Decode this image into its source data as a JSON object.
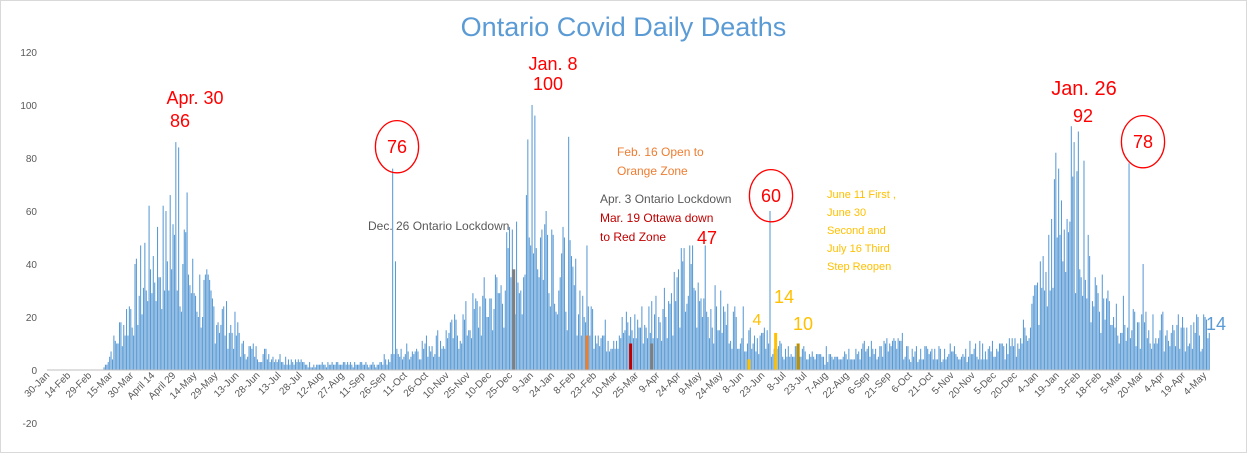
{
  "chart_data": {
    "type": "bar",
    "title": "Ontario Covid Daily Deaths",
    "xlabel": "",
    "ylabel": "",
    "ylim": [
      -20,
      120
    ],
    "yticks": [
      120,
      100,
      80,
      60,
      40,
      20,
      0,
      -20
    ],
    "grid": false,
    "bar_color": "#5b9bd5",
    "x_start": "2020-01-30",
    "x_end": "2022-05-04",
    "x_tick_labels": [
      "30-Jan",
      "14-Feb",
      "29-Feb",
      "15-Mar",
      "30-Mar",
      "April 14",
      "April 29",
      "14-May",
      "29-May",
      "13-Jun",
      "28-Jun",
      "13-Jul",
      "28-Jul",
      "12-Aug",
      "27-Aug",
      "11-Sep",
      "26-Sep",
      "11-Oct",
      "26-Oct",
      "10-Nov",
      "25-Nov",
      "10-Dec",
      "25-Dec",
      "9-Jan",
      "24-Jan",
      "8-Feb",
      "23-Feb",
      "10-Mar",
      "25-Mar",
      "9-Apr",
      "24-Apr",
      "9-May",
      "24-May",
      "8-Jun",
      "23-Jun",
      "8-Jul",
      "23-Jul",
      "7-Aug",
      "22-Aug",
      "6-Sep",
      "21-Sep",
      "6-Oct",
      "21-Oct",
      "5-Nov",
      "20-Nov",
      "5-Dec",
      "20-Dec",
      "4-Jan",
      "19-Jan",
      "3-Feb",
      "18-Feb",
      "5-Mar",
      "20-Mar",
      "4-Apr",
      "19-Apr",
      "4-May"
    ],
    "series_waves": [
      {
        "start": "2020-03-10",
        "end": "2020-04-08",
        "level_from": 1,
        "level_to": 35
      },
      {
        "start": "2020-04-08",
        "end": "2020-05-10",
        "level_from": 40,
        "level_to": 45
      },
      {
        "start": "2020-05-10",
        "end": "2020-06-15",
        "level_from": 32,
        "level_to": 12
      },
      {
        "start": "2020-06-15",
        "end": "2020-08-05",
        "level_from": 8,
        "level_to": 2
      },
      {
        "start": "2020-08-05",
        "end": "2020-09-20",
        "level_from": 2,
        "level_to": 2
      },
      {
        "start": "2020-09-20",
        "end": "2020-11-10",
        "level_from": 3,
        "level_to": 12
      },
      {
        "start": "2020-11-10",
        "end": "2020-12-20",
        "level_from": 12,
        "level_to": 30
      },
      {
        "start": "2020-12-20",
        "end": "2021-01-25",
        "level_from": 35,
        "level_to": 55
      },
      {
        "start": "2021-01-25",
        "end": "2021-02-25",
        "level_from": 40,
        "level_to": 15
      },
      {
        "start": "2021-02-25",
        "end": "2021-04-01",
        "level_from": 12,
        "level_to": 18
      },
      {
        "start": "2021-04-01",
        "end": "2021-05-05",
        "level_from": 20,
        "level_to": 35
      },
      {
        "start": "2021-05-05",
        "end": "2021-06-25",
        "level_from": 25,
        "level_to": 10
      },
      {
        "start": "2021-06-25",
        "end": "2021-08-05",
        "level_from": 8,
        "level_to": 4
      },
      {
        "start": "2021-08-05",
        "end": "2021-10-01",
        "level_from": 6,
        "level_to": 9
      },
      {
        "start": "2021-10-01",
        "end": "2021-12-20",
        "level_from": 6,
        "level_to": 8
      },
      {
        "start": "2021-12-20",
        "end": "2022-01-12",
        "level_from": 10,
        "level_to": 40
      },
      {
        "start": "2022-01-12",
        "end": "2022-02-05",
        "level_from": 55,
        "level_to": 60
      },
      {
        "start": "2022-02-05",
        "end": "2022-03-10",
        "level_from": 35,
        "level_to": 15
      },
      {
        "start": "2022-03-10",
        "end": "2022-05-04",
        "level_from": 15,
        "level_to": 14
      }
    ],
    "spikes": [
      {
        "date": "2020-04-30",
        "value": 86
      },
      {
        "date": "2020-05-02",
        "value": 84
      },
      {
        "date": "2020-04-26",
        "value": 66
      },
      {
        "date": "2020-10-01",
        "value": 76
      },
      {
        "date": "2020-10-03",
        "value": 41
      },
      {
        "date": "2021-01-08",
        "value": 100
      },
      {
        "date": "2021-01-10",
        "value": 96
      },
      {
        "date": "2021-01-05",
        "value": 87
      },
      {
        "date": "2021-02-03",
        "value": 88
      },
      {
        "date": "2021-02-16",
        "value": 47
      },
      {
        "date": "2021-05-11",
        "value": 47
      },
      {
        "date": "2021-06-26",
        "value": 60
      },
      {
        "date": "2022-01-26",
        "value": 92
      },
      {
        "date": "2022-01-30",
        "value": 75
      },
      {
        "date": "2022-03-08",
        "value": 78
      },
      {
        "date": "2022-03-18",
        "value": 40
      },
      {
        "date": "2022-05-04",
        "value": 14
      }
    ],
    "highlight_bars": [
      {
        "date": "2020-12-26",
        "value": 38,
        "color": "#7f7f7f"
      },
      {
        "date": "2021-02-16",
        "value": 13,
        "color": "#ed7d31"
      },
      {
        "date": "2021-03-19",
        "value": 10,
        "color": "#c00000"
      },
      {
        "date": "2021-04-03",
        "value": 10,
        "color": "#7f7f7f"
      },
      {
        "date": "2021-06-11",
        "value": 4,
        "color": "#ffc000"
      },
      {
        "date": "2021-06-30",
        "value": 14,
        "color": "#ffc000"
      },
      {
        "date": "2021-07-16",
        "value": 10,
        "color": "#bf9000"
      }
    ],
    "annotations": [
      {
        "text": "Apr. 30",
        "color": "#ff0000",
        "size": 18
      },
      {
        "text": "86",
        "color": "#ff0000",
        "size": 18
      },
      {
        "text": "76",
        "color": "#ff0000",
        "size": 18,
        "circled": true
      },
      {
        "text": "Dec. 26 Ontario Lockdown",
        "color": "#595959",
        "size": 12
      },
      {
        "text": "Jan. 8",
        "color": "#ff0000",
        "size": 18
      },
      {
        "text": "100",
        "color": "#ff0000",
        "size": 18
      },
      {
        "text": "Feb. 16 Open to",
        "color": "#ed7d31",
        "size": 12
      },
      {
        "text": "Orange Zone",
        "color": "#ed7d31",
        "size": 12
      },
      {
        "text": "Apr. 3 Ontario Lockdown",
        "color": "#595959",
        "size": 12
      },
      {
        "text": "Mar. 19 Ottawa down",
        "color": "#c00000",
        "size": 12
      },
      {
        "text": "to Red Zone",
        "color": "#c00000",
        "size": 12
      },
      {
        "text": "47",
        "color": "#ff0000",
        "size": 18
      },
      {
        "text": "60",
        "color": "#ff0000",
        "size": 18,
        "circled": true
      },
      {
        "text": "June 11 First ,",
        "color": "#ffc000",
        "size": 11
      },
      {
        "text": "June 30",
        "color": "#ffc000",
        "size": 11
      },
      {
        "text": "Second and",
        "color": "#ffc000",
        "size": 11
      },
      {
        "text": "July 16 Third",
        "color": "#ffc000",
        "size": 11
      },
      {
        "text": "Step Reopen",
        "color": "#ffc000",
        "size": 11
      },
      {
        "text": "4",
        "color": "#ffc000",
        "size": 16
      },
      {
        "text": "14",
        "color": "#ffc000",
        "size": 18
      },
      {
        "text": "10",
        "color": "#ffc000",
        "size": 18
      },
      {
        "text": "Jan. 26",
        "color": "#ff0000",
        "size": 20
      },
      {
        "text": "92",
        "color": "#ff0000",
        "size": 18
      },
      {
        "text": "78",
        "color": "#ff0000",
        "size": 18,
        "circled": true
      },
      {
        "text": "14",
        "color": "#5b9bd5",
        "size": 18
      }
    ]
  }
}
